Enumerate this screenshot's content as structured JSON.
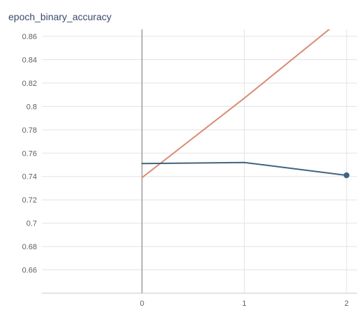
{
  "chart_data": {
    "type": "line",
    "title": "epoch_binary_accuracy",
    "xlabel": "",
    "ylabel": "",
    "x_ticks": [
      0,
      1,
      2
    ],
    "y_ticks": [
      0.66,
      0.68,
      0.7,
      0.72,
      0.74,
      0.76,
      0.78,
      0.8,
      0.82,
      0.84,
      0.86
    ],
    "xlim": [
      -1.0,
      2.0
    ],
    "ylim": [
      0.64,
      0.866
    ],
    "grid": true,
    "series": [
      {
        "color": "#d98c74",
        "x": [
          0,
          1,
          2
        ],
        "y": [
          0.739,
          0.807,
          0.878
        ]
      },
      {
        "color": "#3f6480",
        "x": [
          0,
          1,
          2
        ],
        "y": [
          0.751,
          0.752,
          0.741
        ],
        "end_marker": true
      }
    ]
  }
}
